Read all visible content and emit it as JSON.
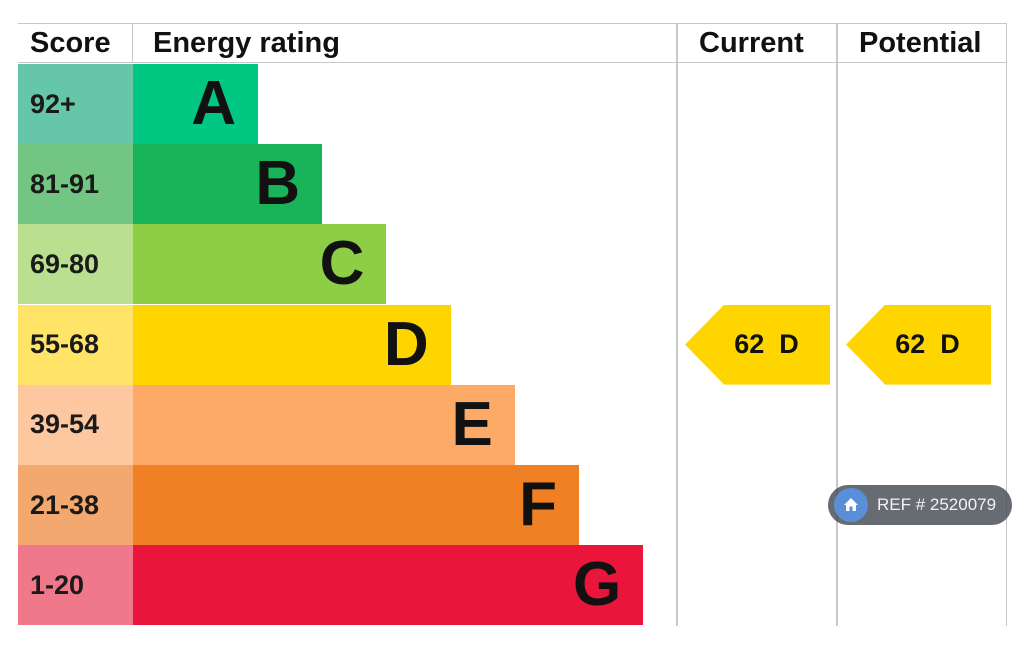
{
  "header": {
    "score": "Score",
    "energy_rating": "Energy rating",
    "current": "Current",
    "potential": "Potential"
  },
  "chart_data": {
    "type": "bar",
    "categories": [
      "A",
      "B",
      "C",
      "D",
      "E",
      "F",
      "G"
    ],
    "score_ranges": [
      "92+",
      "81-91",
      "69-80",
      "55-68",
      "39-54",
      "21-38",
      "1-20"
    ],
    "band_colors": [
      "#00c781",
      "#19b459",
      "#8dce46",
      "#ffd500",
      "#fcaa65",
      "#ef8023",
      "#e9153b"
    ],
    "score_colors": [
      "#66c7a8",
      "#72c582",
      "#b9df8f",
      "#ffe467",
      "#fdc89f",
      "#f3a86f",
      "#f0788b"
    ],
    "current": {
      "value": 62,
      "band": "D",
      "label": "62  D"
    },
    "potential": {
      "value": 62,
      "band": "D",
      "label": "62  D"
    },
    "arrow_color": "#ffd500"
  },
  "ref_badge": {
    "text": "REF # 2520079"
  }
}
